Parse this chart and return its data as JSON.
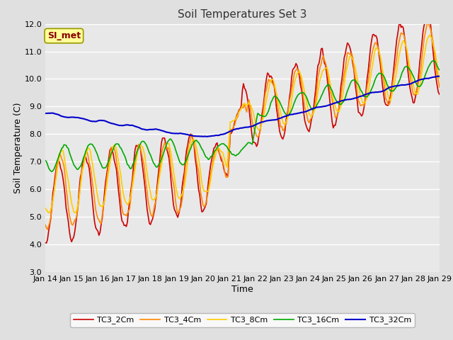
{
  "title": "Soil Temperatures Set 3",
  "xlabel": "Time",
  "ylabel": "Soil Temperature (C)",
  "ylim": [
    3.0,
    12.0
  ],
  "yticks": [
    3.0,
    4.0,
    5.0,
    6.0,
    7.0,
    8.0,
    9.0,
    10.0,
    11.0,
    12.0
  ],
  "ytick_labels": [
    "3.0",
    "4.0",
    "5.0",
    "6.0",
    "7.0",
    "8.0",
    "9.0",
    "10.0",
    "11.0",
    "12.0"
  ],
  "xtick_labels": [
    "Jan 14",
    "Jan 15",
    "Jan 16",
    "Jan 17",
    "Jan 18",
    "Jan 19",
    "Jan 20",
    "Jan 21",
    "Jan 22",
    "Jan 23",
    "Jan 24",
    "Jan 25",
    "Jan 26",
    "Jan 27",
    "Jan 28",
    "Jan 29"
  ],
  "legend_labels": [
    "TC3_2Cm",
    "TC3_4Cm",
    "TC3_8Cm",
    "TC3_16Cm",
    "TC3_32Cm"
  ],
  "line_colors": [
    "#cc0000",
    "#ff8800",
    "#ffcc00",
    "#00aa00",
    "#0000cc"
  ],
  "line_widths": [
    1.2,
    1.2,
    1.2,
    1.2,
    1.5
  ],
  "bg_color": "#e0e0e0",
  "plot_bg_color": "#e8e8e8",
  "grid_color": "#ffffff",
  "annotation_text": "SI_met",
  "annotation_bg": "#ffff99",
  "annotation_border": "#999900"
}
